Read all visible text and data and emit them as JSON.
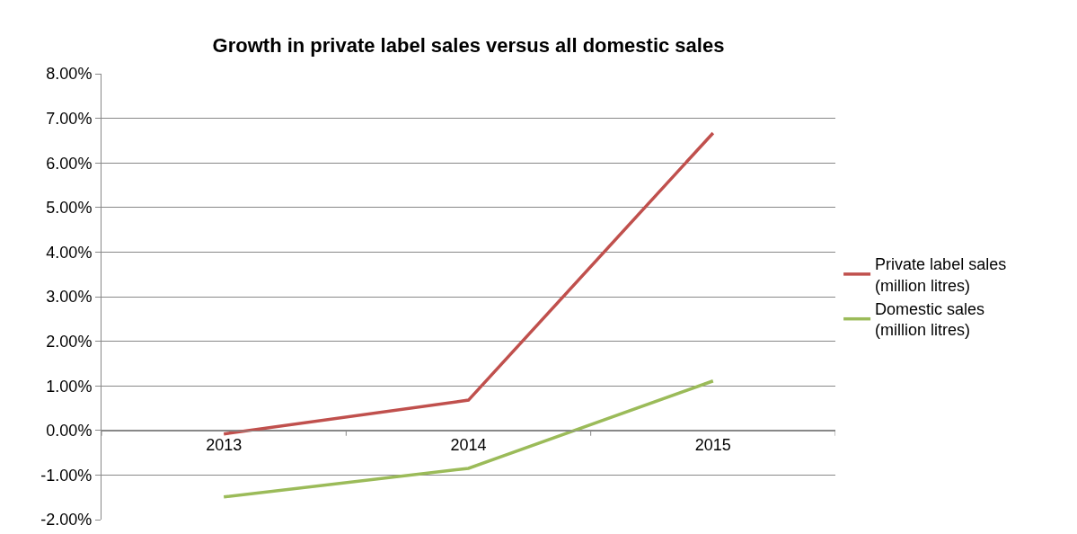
{
  "chart_data": {
    "type": "line",
    "title": "Growth in private label sales versus all domestic sales",
    "categories": [
      "2013",
      "2014",
      "2015"
    ],
    "series": [
      {
        "name": "Private label sales (million litres)",
        "color": "#c0504d",
        "values": [
          -0.08,
          0.68,
          6.67
        ]
      },
      {
        "name": "Domestic sales (million litres)",
        "color": "#9bbb59",
        "values": [
          -1.49,
          -0.85,
          1.11
        ]
      }
    ],
    "ylim": [
      -2,
      8
    ],
    "yticks": [
      {
        "value": -2,
        "label": "-2.00%"
      },
      {
        "value": -1,
        "label": "-1.00%"
      },
      {
        "value": 0,
        "label": "0.00%"
      },
      {
        "value": 1,
        "label": "1.00%"
      },
      {
        "value": 2,
        "label": "2.00%"
      },
      {
        "value": 3,
        "label": "3.00%"
      },
      {
        "value": 4,
        "label": "4.00%"
      },
      {
        "value": 5,
        "label": "5.00%"
      },
      {
        "value": 6,
        "label": "6.00%"
      },
      {
        "value": 7,
        "label": "7.00%"
      },
      {
        "value": 8,
        "label": "8.00%"
      }
    ],
    "grid": "y",
    "legend": "right",
    "marker": "none",
    "line_style": "solid"
  }
}
